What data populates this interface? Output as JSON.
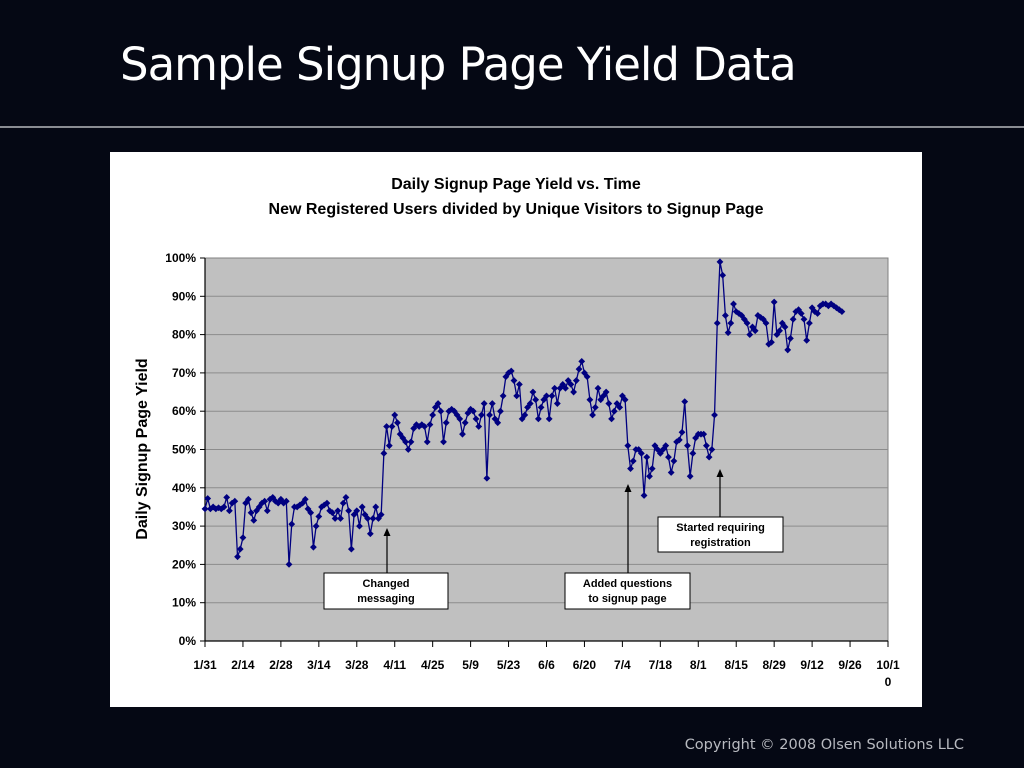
{
  "slide": {
    "title": "Sample Signup Page Yield Data",
    "footer": "Copyright © 2008 Olsen Solutions LLC",
    "colors": {
      "background": "#050814",
      "title_text": "#ffffff",
      "rule": "#8a8c92",
      "footer_text": "#b8bac0"
    }
  },
  "chart": {
    "title_line1": "Daily Signup Page Yield vs. Time",
    "title_line2": "New Registered Users divided by Unique Visitors to Signup Page",
    "ylabel": "Daily Signup Page Yield",
    "yticks": [
      "0%",
      "10%",
      "20%",
      "30%",
      "40%",
      "50%",
      "60%",
      "70%",
      "80%",
      "90%",
      "100%"
    ],
    "xticks": [
      "1/31",
      "2/14",
      "2/28",
      "3/14",
      "3/28",
      "4/11",
      "4/25",
      "5/9",
      "5/23",
      "6/6",
      "6/20",
      "7/4",
      "7/18",
      "8/1",
      "8/15",
      "8/29",
      "9/12",
      "9/26",
      "10/10"
    ],
    "annotations": [
      {
        "label_line1": "Changed",
        "label_line2": "messaging",
        "arrow_x_date": "4/5"
      },
      {
        "label_line1": "Added questions",
        "label_line2": "to signup page",
        "arrow_x_date": "7/6"
      },
      {
        "label_line1": "Started requiring",
        "label_line2": "registration",
        "arrow_x_date": "8/10"
      }
    ],
    "colors": {
      "plot_bg": "#c0c0c0",
      "gridline": "#8c8c8c",
      "series": "#000080",
      "panel_bg": "#ffffff"
    }
  },
  "chart_data": {
    "type": "line",
    "title": "Daily Signup Page Yield vs. Time — New Registered Users divided by Unique Visitors to Signup Page",
    "xlabel": "",
    "ylabel": "Daily Signup Page Yield",
    "ylim": [
      0,
      1
    ],
    "x_range": [
      "1/31",
      "10/10"
    ],
    "grid": true,
    "legend": "none",
    "marker": "diamond",
    "x_tick_labels": [
      "1/31",
      "2/14",
      "2/28",
      "3/14",
      "3/28",
      "4/11",
      "4/25",
      "5/9",
      "5/23",
      "6/6",
      "6/20",
      "7/4",
      "7/18",
      "8/1",
      "8/15",
      "8/29",
      "9/12",
      "9/26",
      "10/10"
    ],
    "y_tick_labels": [
      "0%",
      "10%",
      "20%",
      "30%",
      "40%",
      "50%",
      "60%",
      "70%",
      "80%",
      "90%",
      "100%"
    ],
    "series": [
      {
        "name": "Daily Signup Page Yield",
        "start_date": "1/31",
        "step_days": 1,
        "values": [
          0.345,
          0.372,
          0.345,
          0.35,
          0.345,
          0.348,
          0.345,
          0.35,
          0.375,
          0.34,
          0.36,
          0.365,
          0.22,
          0.24,
          0.27,
          0.36,
          0.37,
          0.335,
          0.315,
          0.34,
          0.35,
          0.36,
          0.365,
          0.34,
          0.37,
          0.375,
          0.365,
          0.36,
          0.37,
          0.36,
          0.365,
          0.2,
          0.305,
          0.35,
          0.35,
          0.355,
          0.36,
          0.37,
          0.345,
          0.335,
          0.245,
          0.3,
          0.325,
          0.35,
          0.355,
          0.36,
          0.34,
          0.335,
          0.32,
          0.34,
          0.32,
          0.36,
          0.375,
          0.34,
          0.24,
          0.33,
          0.34,
          0.3,
          0.35,
          0.33,
          0.32,
          0.28,
          0.32,
          0.35,
          0.32,
          0.33,
          0.49,
          0.56,
          0.51,
          0.56,
          0.59,
          0.57,
          0.54,
          0.53,
          0.52,
          0.5,
          0.52,
          0.555,
          0.565,
          0.56,
          0.565,
          0.56,
          0.52,
          0.565,
          0.59,
          0.61,
          0.62,
          0.6,
          0.52,
          0.57,
          0.6,
          0.605,
          0.6,
          0.59,
          0.58,
          0.54,
          0.57,
          0.595,
          0.605,
          0.6,
          0.58,
          0.56,
          0.59,
          0.62,
          0.425,
          0.59,
          0.62,
          0.58,
          0.57,
          0.6,
          0.64,
          0.69,
          0.7,
          0.705,
          0.68,
          0.64,
          0.67,
          0.58,
          0.59,
          0.61,
          0.62,
          0.65,
          0.63,
          0.58,
          0.61,
          0.63,
          0.64,
          0.58,
          0.64,
          0.66,
          0.62,
          0.66,
          0.67,
          0.66,
          0.68,
          0.67,
          0.65,
          0.68,
          0.71,
          0.73,
          0.7,
          0.69,
          0.63,
          0.59,
          0.61,
          0.66,
          0.63,
          0.64,
          0.65,
          0.62,
          0.58,
          0.6,
          0.62,
          0.61,
          0.64,
          0.63,
          0.51,
          0.45,
          0.47,
          0.5,
          0.5,
          0.49,
          0.38,
          0.48,
          0.43,
          0.45,
          0.51,
          0.5,
          0.49,
          0.5,
          0.51,
          0.48,
          0.44,
          0.47,
          0.52,
          0.525,
          0.545,
          0.625,
          0.51,
          0.43,
          0.49,
          0.53,
          0.54,
          0.54,
          0.54,
          0.51,
          0.48,
          0.5,
          0.59,
          0.83,
          0.99,
          0.955,
          0.85,
          0.805,
          0.83,
          0.88,
          0.86,
          0.855,
          0.85,
          0.84,
          0.83,
          0.8,
          0.82,
          0.81,
          0.85,
          0.845,
          0.84,
          0.83,
          0.775,
          0.78,
          0.885,
          0.8,
          0.81,
          0.83,
          0.82,
          0.76,
          0.79,
          0.84,
          0.86,
          0.865,
          0.855,
          0.84,
          0.785,
          0.83,
          0.87,
          0.86,
          0.855,
          0.875,
          0.88,
          0.88,
          0.875,
          0.88,
          0.875,
          0.87,
          0.865,
          0.86
        ]
      }
    ],
    "annotations": [
      {
        "text": "Changed messaging",
        "date": "~4/5",
        "y_arrow_tip": 0.3
      },
      {
        "text": "Added questions to signup page",
        "date": "~7/6",
        "y_arrow_tip": 0.4
      },
      {
        "text": "Started requiring registration",
        "date": "~8/10",
        "y_arrow_tip": 0.45
      }
    ]
  }
}
